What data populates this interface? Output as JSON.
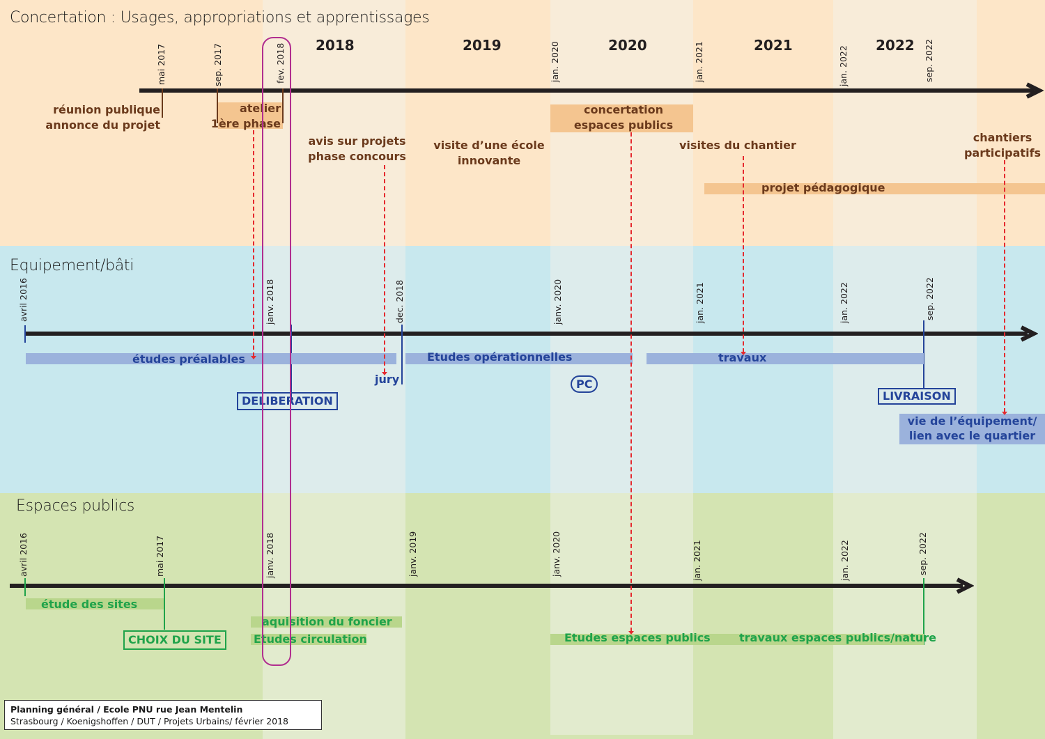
{
  "colors": {
    "concertation_bg": "#fde6c8",
    "concertation_bg_light": "#f8ecd9",
    "equipement_bg": "#c8e8ee",
    "equipement_bg_light": "#ddecec",
    "espaces_bg": "#d4e4b2",
    "espaces_bg_light": "#e2ebce",
    "axis": "#231f20",
    "brown_text": "#6b3a1c",
    "blue_text": "#24449a",
    "green_text": "#1fa34a",
    "orange_bar": "#f4c590",
    "blue_bar": "#9bb2dc",
    "green_bar": "#b9d68c",
    "dashed_link": "#e5292e",
    "highlight_outline": "#b12e8f"
  },
  "years": [
    "2018",
    "2019",
    "2020",
    "2021",
    "2022"
  ],
  "concertation": {
    "title": "Concertation : Usages, appropriations et apprentissages",
    "ticks": [
      "mai 2017",
      "sep. 2017",
      "fev. 2018",
      "jan. 2020",
      "jan. 2021",
      "jan. 2022",
      "sep. 2022"
    ],
    "events": {
      "reunion": {
        "line1": "réunion publique",
        "line2": "annonce du projet"
      },
      "atelier": {
        "line1": "atelier",
        "line2": "1ère phase"
      },
      "avis": {
        "line1": "avis sur projets",
        "line2": "phase concours"
      },
      "visite": {
        "line1": "visite d’une école",
        "line2": "innovante"
      },
      "concertation_ep": {
        "line1": "concertation",
        "line2": "espaces publics"
      },
      "visites_chantier": "visites du chantier",
      "chantiers": {
        "line1": "chantiers",
        "line2": "participatifs"
      },
      "projet_pedagogique": "projet pédagogique"
    }
  },
  "equipement": {
    "title": "Equipement/bâti",
    "ticks": [
      "avril 2016",
      "janv. 2018",
      "dec. 2018",
      "janv. 2020",
      "jan. 2021",
      "jan. 2022",
      "sep. 2022"
    ],
    "bars": {
      "etudes_prealables": "études préalables",
      "etudes_operationnelles": "Etudes opérationnelles",
      "travaux": "travaux"
    },
    "jury": "jury",
    "deliberation": "DELIBERATION",
    "pc": "PC",
    "livraison": "LIVRAISON",
    "vie": {
      "line1": "vie de l’équipement/",
      "line2": "lien avec le quartier"
    }
  },
  "espaces": {
    "title": "Espaces publics",
    "ticks": [
      "avril 2016",
      "mai 2017",
      "janv. 2018",
      "janv. 2019",
      "janv. 2020",
      "jan. 2021",
      "jan. 2022",
      "sep. 2022"
    ],
    "bars": {
      "etude_sites": "étude des sites",
      "aquisition": "aquisition du foncier",
      "circulation": "Etudes circulation",
      "etudes_ep": "Etudes espaces publics",
      "travaux_ep": "travaux espaces publics/nature"
    },
    "choix": "CHOIX DU SITE"
  },
  "footer": {
    "line1": "Planning général / Ecole PNU rue Jean Mentelin",
    "line2": "Strasbourg / Koenigshoffen / DUT / Projets Urbains/ février 2018"
  }
}
